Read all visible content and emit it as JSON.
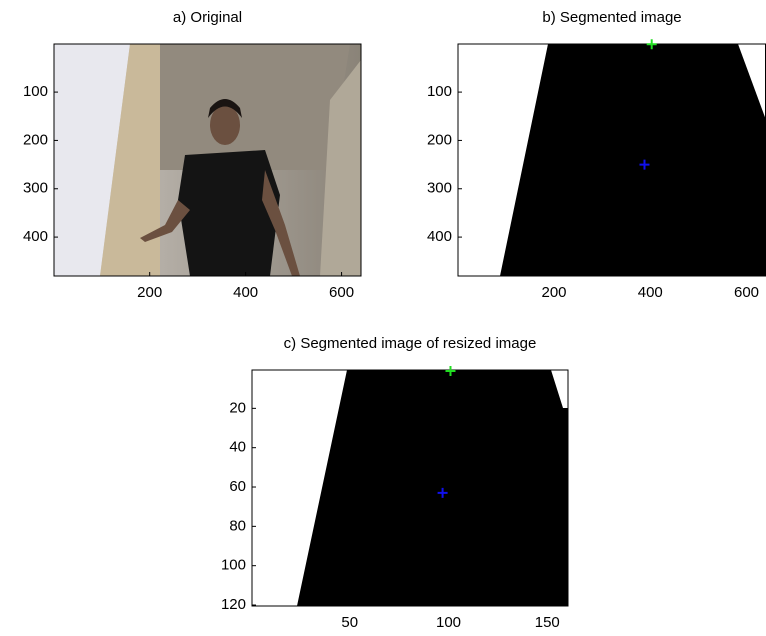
{
  "chart_data": [
    {
      "type": "image",
      "title": "a) Original",
      "xlim": [
        0.5,
        640.5
      ],
      "ylim": [
        0.5,
        480.5
      ],
      "xticks": [
        200,
        400,
        600
      ],
      "yticks": [
        100,
        200,
        300,
        400
      ]
    },
    {
      "type": "image",
      "title": "b) Segmented image",
      "xlim": [
        0.5,
        640.5
      ],
      "ylim": [
        0.5,
        480.5
      ],
      "xticks": [
        200,
        400,
        600
      ],
      "yticks": [
        100,
        200,
        300,
        400
      ],
      "markers": [
        {
          "x": 403,
          "y": 1,
          "color": "#22dd22"
        },
        {
          "x": 388,
          "y": 250,
          "color": "#1010ee"
        }
      ]
    },
    {
      "type": "image",
      "title": "c) Segmented image of resized image",
      "xlim": [
        0.5,
        160.5
      ],
      "ylim": [
        0.5,
        120.5
      ],
      "xticks": [
        50,
        100,
        150
      ],
      "yticks": [
        20,
        40,
        60,
        80,
        100,
        120
      ],
      "markers": [
        {
          "x": 101,
          "y": 1,
          "color": "#22dd22"
        },
        {
          "x": 97,
          "y": 63,
          "color": "#1010ee"
        }
      ]
    }
  ]
}
